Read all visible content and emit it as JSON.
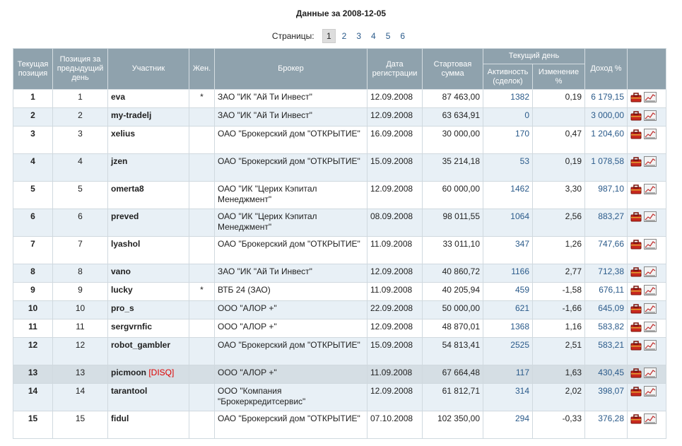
{
  "page": {
    "title": "Данные за 2008-12-05",
    "pages_label": "Страницы:",
    "pages": [
      "1",
      "2",
      "3",
      "4",
      "5",
      "6"
    ],
    "current_page": "1"
  },
  "headers": {
    "pos": "Текущая позиция",
    "prev": "Позиция за предыдущий день",
    "participant": "Участник",
    "female": "Жен.",
    "broker": "Брокер",
    "reg_date": "Дата регистрации",
    "start_sum": "Стартовая сумма",
    "current_day": "Текущий день",
    "activity": "Активность (сделок)",
    "change": "Изменение %",
    "income": "Доход %"
  },
  "rows": [
    {
      "pos": "1",
      "prev": "1",
      "name": "eva",
      "disq": "",
      "fem": "*",
      "broker": "ЗАО \"ИК \"Ай Ти Инвест\"",
      "date": "12.09.2008",
      "sum": "87 463,00",
      "act": "1382",
      "chg": "0,19",
      "inc": "6 179,15"
    },
    {
      "pos": "2",
      "prev": "2",
      "name": "my-tradelj",
      "disq": "",
      "fem": "",
      "broker": "ЗАО \"ИК \"Ай Ти Инвест\"",
      "date": "12.09.2008",
      "sum": "63 634,91",
      "act": "0",
      "chg": "",
      "inc": "3 000,00"
    },
    {
      "pos": "3",
      "prev": "3",
      "name": "xelius",
      "disq": "",
      "fem": "",
      "broker": "ОАО \"Брокерский дом \"ОТКРЫТИЕ\"",
      "date": "16.09.2008",
      "sum": "30 000,00",
      "act": "170",
      "chg": "0,47",
      "inc": "1 204,60"
    },
    {
      "pos": "4",
      "prev": "4",
      "name": "jzen",
      "disq": "",
      "fem": "",
      "broker": "ОАО \"Брокерский дом \"ОТКРЫТИЕ\"",
      "date": "15.09.2008",
      "sum": "35 214,18",
      "act": "53",
      "chg": "0,19",
      "inc": "1 078,58"
    },
    {
      "pos": "5",
      "prev": "5",
      "name": "omerta8",
      "disq": "",
      "fem": "",
      "broker": "ОАО \"ИК \"Церих Кэпитал Менеджмент\"",
      "date": "12.09.2008",
      "sum": "60 000,00",
      "act": "1462",
      "chg": "3,30",
      "inc": "987,10"
    },
    {
      "pos": "6",
      "prev": "6",
      "name": "preved",
      "disq": "",
      "fem": "",
      "broker": "ОАО \"ИК \"Церих Кэпитал Менеджмент\"",
      "date": "08.09.2008",
      "sum": "98 011,55",
      "act": "1064",
      "chg": "2,56",
      "inc": "883,27"
    },
    {
      "pos": "7",
      "prev": "7",
      "name": "lyashol",
      "disq": "",
      "fem": "",
      "broker": "ОАО \"Брокерский дом \"ОТКРЫТИЕ\"",
      "date": "11.09.2008",
      "sum": "33 011,10",
      "act": "347",
      "chg": "1,26",
      "inc": "747,66"
    },
    {
      "pos": "8",
      "prev": "8",
      "name": "vano",
      "disq": "",
      "fem": "",
      "broker": "ЗАО \"ИК \"Ай Ти Инвест\"",
      "date": "12.09.2008",
      "sum": "40 860,72",
      "act": "1166",
      "chg": "2,77",
      "inc": "712,38"
    },
    {
      "pos": "9",
      "prev": "9",
      "name": "lucky",
      "disq": "",
      "fem": "*",
      "broker": "ВТБ 24 (ЗАО)",
      "date": "11.09.2008",
      "sum": "40 205,94",
      "act": "459",
      "chg": "-1,58",
      "inc": "676,11"
    },
    {
      "pos": "10",
      "prev": "10",
      "name": "pro_s",
      "disq": "",
      "fem": "",
      "broker": "ООО \"АЛОР +\"",
      "date": "22.09.2008",
      "sum": "50 000,00",
      "act": "621",
      "chg": "-1,66",
      "inc": "645,09"
    },
    {
      "pos": "11",
      "prev": "11",
      "name": "sergvrnfic",
      "disq": "",
      "fem": "",
      "broker": "ООО \"АЛОР +\"",
      "date": "12.09.2008",
      "sum": "48 870,01",
      "act": "1368",
      "chg": "1,16",
      "inc": "583,82"
    },
    {
      "pos": "12",
      "prev": "12",
      "name": "robot_gambler",
      "disq": "",
      "fem": "",
      "broker": "ОАО \"Брокерский дом \"ОТКРЫТИЕ\"",
      "date": "15.09.2008",
      "sum": "54 813,41",
      "act": "2525",
      "chg": "2,51",
      "inc": "583,21"
    },
    {
      "pos": "13",
      "prev": "13",
      "name": "picmoon",
      "disq": "[DISQ]",
      "fem": "",
      "broker": "ООО \"АЛОР +\"",
      "date": "11.09.2008",
      "sum": "67 664,48",
      "act": "117",
      "chg": "1,63",
      "inc": "430,45"
    },
    {
      "pos": "14",
      "prev": "14",
      "name": "tarantool",
      "disq": "",
      "fem": "",
      "broker": "ООО \"Компания \"Брокеркредитсервис\"",
      "date": "12.09.2008",
      "sum": "61 812,71",
      "act": "314",
      "chg": "2,02",
      "inc": "398,07"
    },
    {
      "pos": "15",
      "prev": "15",
      "name": "fidul",
      "disq": "",
      "fem": "",
      "broker": "ОАО \"Брокерский дом \"ОТКРЫТИЕ\"",
      "date": "07.10.2008",
      "sum": "102 350,00",
      "act": "294",
      "chg": "-0,33",
      "inc": "376,28"
    }
  ],
  "colors": {
    "header_bg": "#8fa2ad",
    "row_alt": "#e8f0f6",
    "row_highlight": "#d5dee4",
    "link": "#2a5a8a",
    "disq": "#dd0000"
  },
  "icons": [
    "portfolio-icon",
    "chart-icon"
  ]
}
